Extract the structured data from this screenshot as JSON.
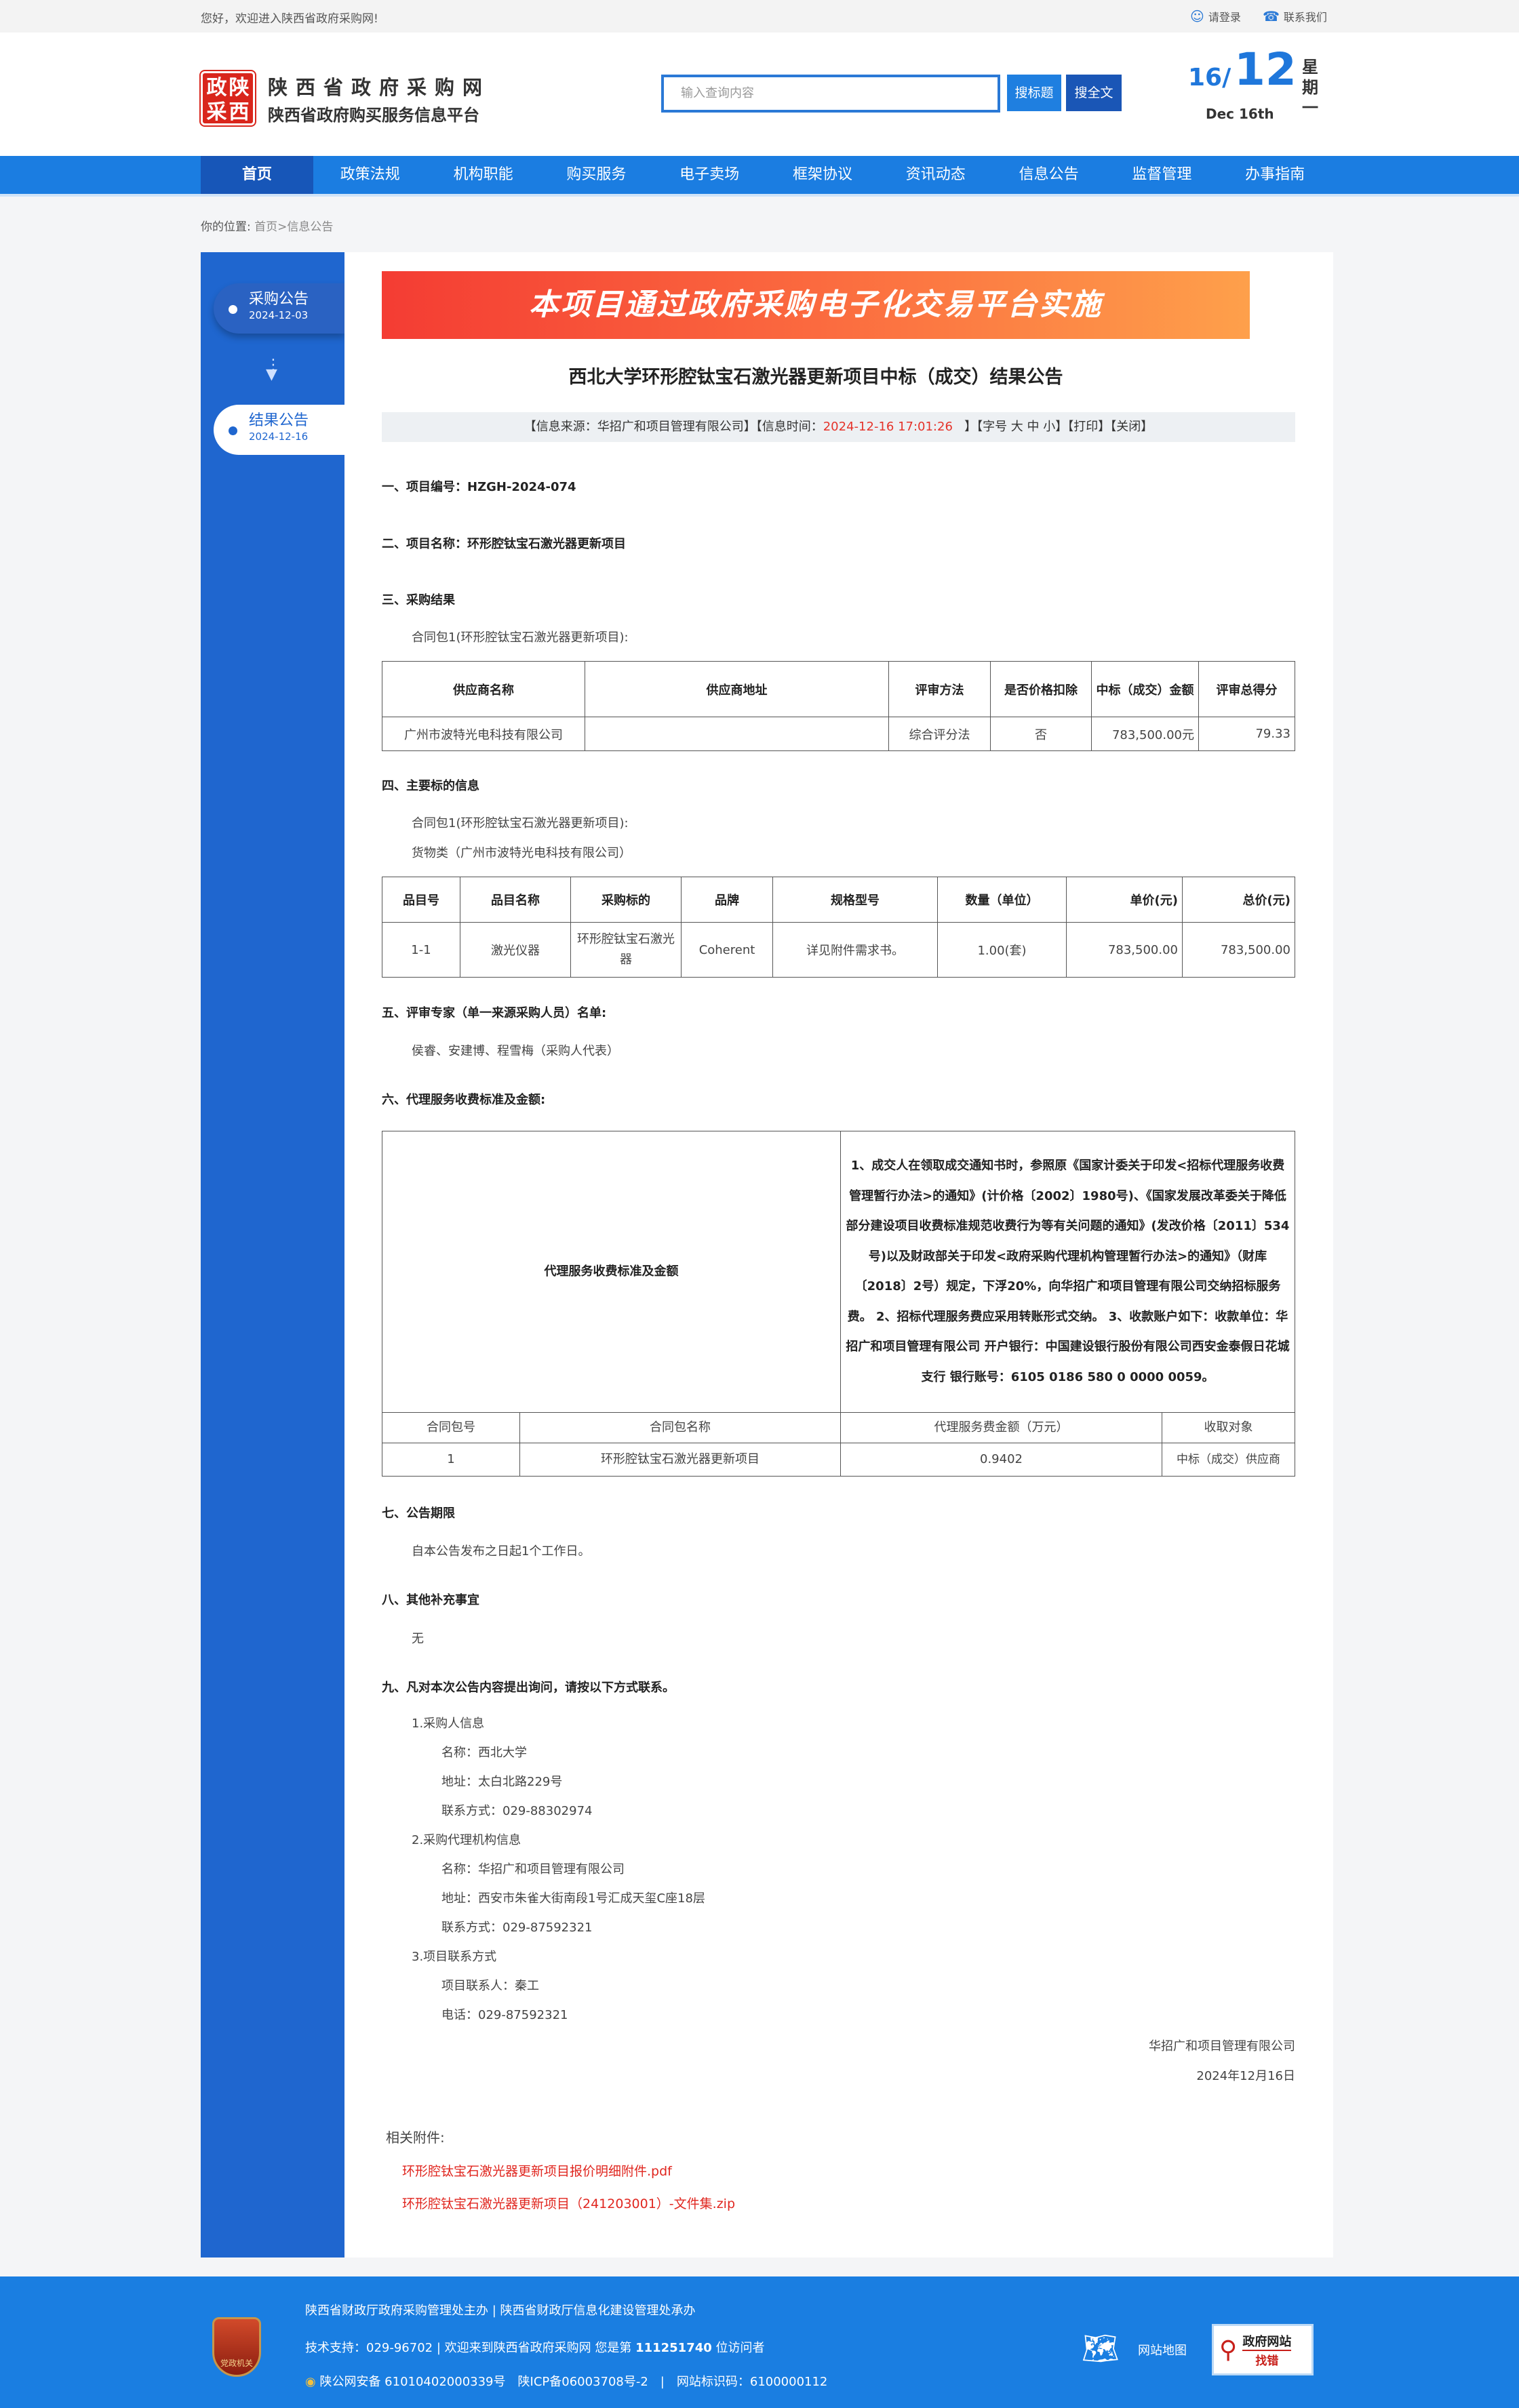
{
  "topbar": {
    "welcome": "您好，欢迎进入陕西省政府采购网!",
    "login": "请登录",
    "contact": "联系我们"
  },
  "header": {
    "logo_chars": [
      "政",
      "陕",
      "采",
      "西"
    ],
    "site_name": "陕西省政府采购网",
    "site_sub": "陕西省政府购买服务信息平台",
    "search_placeholder": "输入查询内容",
    "search_title": "搜标题",
    "search_full": "搜全文",
    "date_day": "16/",
    "date_month": "12",
    "weekday": "星期一",
    "date_en": "Dec 16th"
  },
  "nav": [
    "首页",
    "政策法规",
    "机构职能",
    "购买服务",
    "电子卖场",
    "框架协议",
    "资讯动态",
    "信息公告",
    "监督管理",
    "办事指南"
  ],
  "breadcrumb": {
    "label": "你的位置:",
    "home": "首页",
    "current": ">信息公告"
  },
  "sidebar": [
    {
      "title": "采购公告",
      "date": "2024-12-03"
    },
    {
      "title": "结果公告",
      "date": "2024-12-16"
    }
  ],
  "banner": "本项目通过政府采购电子化交易平台实施",
  "title": "西北大学环形腔钛宝石激光器更新项目中标（成交）结果公告",
  "info": {
    "source": "【信息来源：华招广和项目管理有限公司】【信息时间：",
    "time": "2024-12-16 17:01:26",
    "tail": "】【字号 大 中 小】【打印】【关闭】"
  },
  "sections": {
    "s1": "一、项目编号：HZGH-2024-074",
    "s2": "二、项目名称：环形腔钛宝石激光器更新项目",
    "s3": "三、采购结果",
    "s3_pkg": "合同包1(环形腔钛宝石激光器更新项目):",
    "s4": "四、主要标的信息",
    "s4_pkg": "合同包1(环形腔钛宝石激光器更新项目):",
    "s4_type": "货物类（广州市波特光电科技有限公司）",
    "s5": "五、评审专家（单一来源采购人员）名单:",
    "s5_names": "侯睿、安建博、程雪梅（采购人代表）",
    "s6": "六、代理服务收费标准及金额:",
    "s7": "七、公告期限",
    "s7_text": "自本公告发布之日起1个工作日。",
    "s8": "八、其他补充事宜",
    "s8_text": "无",
    "s9": "九、凡对本次公告内容提出询问，请按以下方式联系。"
  },
  "result_table": {
    "headers": [
      "供应商名称",
      "供应商地址",
      "评审方法",
      "是否价格扣除",
      "中标（成交）金额",
      "评审总得分"
    ],
    "row": [
      "广州市波特光电科技有限公司",
      "",
      "综合评分法",
      "否",
      "783,500.00元",
      "79.33"
    ]
  },
  "items_table": {
    "headers": [
      "品目号",
      "品目名称",
      "采购标的",
      "品牌",
      "规格型号",
      "数量（单位）",
      "单价(元)",
      "总价(元)"
    ],
    "row": [
      "1-1",
      "激光仪器",
      "环形腔钛宝石激光器",
      "Coherent",
      "详见附件需求书。",
      "1.00(套)",
      "783,500.00",
      "783,500.00"
    ]
  },
  "fee_table": {
    "label": "代理服务收费标准及金额",
    "text": "1、成交人在领取成交通知书时，参照原《国家计委关于印发<招标代理服务收费管理暂行办法>的通知》(计价格〔2002〕1980号)、《国家发展改革委关于降低部分建设项目收费标准规范收费行为等有关问题的通知》(发改价格〔2011〕534号)以及财政部关于印发<政府采购代理机构管理暂行办法>的通知》（财库〔2018〕2号）规定，下浮20%，向华招广和项目管理有限公司交纳招标服务费。 2、招标代理服务费应采用转账形式交纳。 3、收款账户如下：收款单位：华招广和项目管理有限公司 开户银行：中国建设银行股份有限公司西安金泰假日花城支行 银行账号：6105 0186 580 0 0000 0059。",
    "headers": [
      "合同包号",
      "合同包名称",
      "代理服务费金额（万元）",
      "收取对象"
    ],
    "row": [
      "1",
      "环形腔钛宝石激光器更新项目",
      "0.9402",
      "中标（成交）供应商"
    ]
  },
  "contacts": [
    {
      "text": "1.采购人信息",
      "indent": 1
    },
    {
      "text": "名称：西北大学",
      "indent": 2
    },
    {
      "text": "地址：太白北路229号",
      "indent": 2
    },
    {
      "text": "联系方式：029-88302974",
      "indent": 2
    },
    {
      "text": "2.采购代理机构信息",
      "indent": 1
    },
    {
      "text": "名称：华招广和项目管理有限公司",
      "indent": 2
    },
    {
      "text": "地址：西安市朱雀大街南段1号汇成天玺C座18层",
      "indent": 2
    },
    {
      "text": "联系方式：029-87592321",
      "indent": 2
    },
    {
      "text": "3.项目联系方式",
      "indent": 1
    },
    {
      "text": "项目联系人：秦工",
      "indent": 2
    },
    {
      "text": "电话：029-87592321",
      "indent": 2
    }
  ],
  "signature": {
    "company": "华招广和项目管理有限公司",
    "date": "2024年12月16日"
  },
  "attachments": {
    "label": "相关附件:",
    "files": [
      "环形腔钛宝石激光器更新项目报价明细附件.pdf",
      "环形腔钛宝石激光器更新项目（241203001）-文件集.zip"
    ]
  },
  "footer": {
    "line1": "陕西省财政厅政府采购管理处主办 | 陕西省财政厅信息化建设管理处承办",
    "line2_pre": "技术支持：029-96702 | 欢迎来到陕西省政府采购网 您是第 ",
    "visitors": "111251740",
    "line2_post": " 位访问者",
    "line3": "陕公网安备 61010402000339号　陕ICP备06003708号-2　|　网站标识码：6100000112",
    "badge": "党政机关",
    "sitemap": "网站地图",
    "zc_top": "政府网站",
    "zc_bottom": "找错"
  },
  "colors": {
    "nav": "#1b7de1",
    "nav_active": "#1756b8",
    "sidebar": "#1f66cf",
    "accent_red": "#e5332a",
    "footer": "#1a7ee1"
  }
}
